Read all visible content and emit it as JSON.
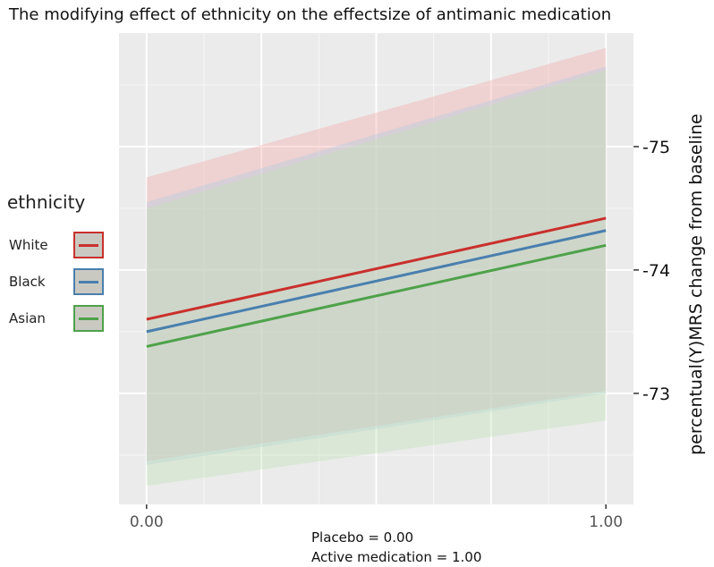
{
  "chart_data": {
    "type": "line",
    "title": "The modifying effect of ethnicity on  the effectsize of antimanic medication",
    "xlabel_lines": [
      "Placebo = 0.00",
      "Active medication = 1.00"
    ],
    "ylabel": "percentual(Y)MRS change from baseline",
    "x": [
      0,
      1
    ],
    "x_tick_labels": [
      "0.00",
      "1.00"
    ],
    "xlim": [
      -0.06,
      1.06
    ],
    "ylim": [
      72.1,
      75.92
    ],
    "y_ticks": [
      73,
      74,
      75
    ],
    "y_tick_labels": [
      "-73",
      "-74",
      "-75"
    ],
    "grid": true,
    "legend_title": "ethnicity",
    "series": [
      {
        "name": "White",
        "color": "#c9302c",
        "band_color": "#f4a9a8",
        "values": [
          73.6,
          74.42
        ],
        "lower": [
          72.45,
          73.02
        ],
        "upper": [
          74.75,
          75.8
        ]
      },
      {
        "name": "Black",
        "color": "#4a7fae",
        "band_color": "#b3cde3",
        "values": [
          73.5,
          74.32
        ],
        "lower": [
          72.42,
          73.0
        ],
        "upper": [
          74.55,
          75.65
        ]
      },
      {
        "name": "Asian",
        "color": "#4ea24a",
        "band_color": "#bfe3b5",
        "values": [
          73.38,
          74.2
        ],
        "lower": [
          72.25,
          72.78
        ],
        "upper": [
          74.5,
          75.62
        ]
      }
    ]
  }
}
